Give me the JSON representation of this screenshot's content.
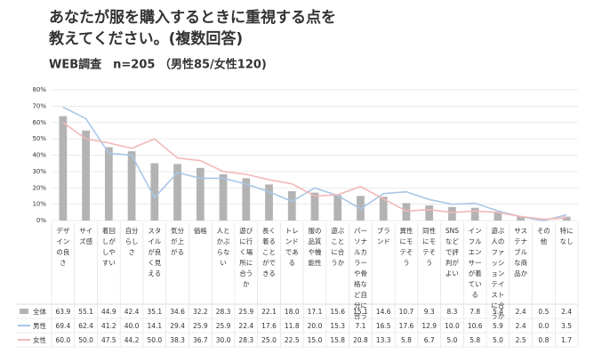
{
  "chart_data": {
    "type": "bar",
    "title": "あなたが服を購入するときに重視する点を",
    "title_line2": "教えてください。(複数回答)",
    "subtitle": "WEB調査　n=205 （男性85/女性120)",
    "categories": [
      "デザインの良さ",
      "サイズ感",
      "着回しがしやすい",
      "自分らしさ",
      "スタイルが良く見える",
      "気分が上がる",
      "価格",
      "人とかぶらない",
      "遊びに行く場所に合うか",
      "長く着ることができる",
      "トレンドである",
      "服の品質や機能性",
      "遊ぶことに合うか",
      "パーソナルカラーや骨格など自分に合う",
      "ブランド",
      "異性にモテそう",
      "同性にモテそう",
      "SNSなどで評判がよい",
      "インフルエンサーが着ている",
      "遊ぶ人のファッションテイストに合うか",
      "サステナブルな商品か",
      "その他",
      "特になし"
    ],
    "series": [
      {
        "name": "全体",
        "type": "bar",
        "color": "#b3b3b3",
        "values": [
          63.9,
          55.1,
          44.9,
          42.4,
          35.1,
          34.6,
          32.2,
          28.3,
          25.9,
          22.1,
          18.0,
          17.1,
          15.6,
          15.1,
          14.6,
          10.7,
          9.3,
          8.3,
          7.8,
          5.4,
          2.4,
          0.5,
          2.4
        ],
        "value_labels": [
          "63.9",
          "55.1",
          "44.9",
          "42.4",
          "35.1",
          "34.6",
          "32.2",
          "28.3",
          "25.9",
          "22.1",
          "18.0",
          "17.1",
          "15.6",
          "15.1",
          "14.6",
          "10.7",
          "9.3",
          "8.3",
          "7.8",
          "5.4",
          "2.4",
          "0.5",
          "2.4"
        ]
      },
      {
        "name": "男性",
        "type": "line",
        "color": "#a9c6e6",
        "values": [
          69.4,
          62.4,
          41.2,
          40.0,
          14.1,
          29.4,
          25.9,
          25.9,
          22.4,
          17.6,
          11.8,
          20.0,
          15.3,
          7.1,
          16.5,
          17.6,
          12.9,
          10.0,
          10.6,
          5.9,
          2.4,
          0.0,
          3.5
        ],
        "value_labels": [
          "69.4",
          "62.4",
          "41.2",
          "40.0",
          "14.1",
          "29.4",
          "25.9",
          "25.9",
          "22.4",
          "17.6",
          "11.8",
          "20.0",
          "15.3",
          "7.1",
          "16.5",
          "17.6",
          "12.9",
          "10.0",
          "10.6",
          "5.9",
          "2.4",
          "0.0",
          "3.5"
        ]
      },
      {
        "name": "女性",
        "type": "line",
        "color": "#f2b8b8",
        "values": [
          60.0,
          50.0,
          47.5,
          44.2,
          50.0,
          38.3,
          36.7,
          30.0,
          28.3,
          25.0,
          22.5,
          15.0,
          15.8,
          20.8,
          13.3,
          5.8,
          6.7,
          5.0,
          5.8,
          5.0,
          2.5,
          0.8,
          1.7
        ],
        "value_labels": [
          "60.0",
          "50.0",
          "47.5",
          "44.2",
          "50.0",
          "38.3",
          "36.7",
          "30.0",
          "28.3",
          "25.0",
          "22.5",
          "15.0",
          "15.8",
          "20.8",
          "13.3",
          "5.8",
          "6.7",
          "5.0",
          "5.8",
          "5.0",
          "2.5",
          "0.8",
          "1.7"
        ]
      }
    ],
    "ylim": [
      0,
      80
    ],
    "yticks": [
      {
        "value": 0,
        "label": "0%"
      },
      {
        "value": 10,
        "label": "10%"
      },
      {
        "value": 20,
        "label": "20%"
      },
      {
        "value": 30,
        "label": "30%"
      },
      {
        "value": 40,
        "label": "40%"
      },
      {
        "value": 50,
        "label": "50%"
      },
      {
        "value": 60,
        "label": "60%"
      },
      {
        "value": 70,
        "label": "70%"
      },
      {
        "value": 80,
        "label": "80%"
      }
    ],
    "grid": true
  }
}
